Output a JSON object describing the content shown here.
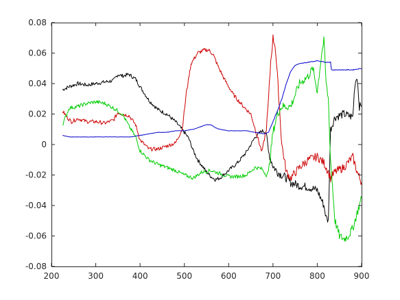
{
  "chart_data": {
    "type": "line",
    "title": "",
    "xlabel": "",
    "ylabel": "",
    "xlim": [
      200,
      900
    ],
    "ylim": [
      -0.08,
      0.08
    ],
    "xticks": [
      "200",
      "300",
      "400",
      "500",
      "600",
      "700",
      "800",
      "900"
    ],
    "yticks": [
      "-0.08",
      "-0.06",
      "-0.04",
      "-0.02",
      "0",
      "0.02",
      "0.04",
      "0.06",
      "0.08"
    ],
    "grid": false,
    "legend": "none",
    "series": [
      {
        "color": "#000000",
        "x": [
          225,
          240,
          260,
          280,
          300,
          320,
          340,
          350,
          360,
          375,
          390,
          400,
          420,
          440,
          460,
          480,
          500,
          510,
          520,
          530,
          540,
          550,
          560,
          570,
          580,
          600,
          620,
          640,
          660,
          675,
          685,
          690,
          700,
          710,
          720,
          730,
          740,
          760,
          780,
          800,
          815,
          820,
          825,
          830,
          840,
          860,
          880,
          885,
          890,
          895,
          900
        ],
        "y": [
          0.036,
          0.038,
          0.04,
          0.039,
          0.04,
          0.041,
          0.042,
          0.046,
          0.045,
          0.046,
          0.043,
          0.038,
          0.029,
          0.023,
          0.02,
          0.015,
          0.008,
          0.004,
          -0.004,
          -0.01,
          -0.014,
          -0.018,
          -0.021,
          -0.023,
          -0.022,
          -0.017,
          -0.012,
          -0.005,
          0.005,
          0.009,
          0.008,
          -0.005,
          -0.014,
          -0.018,
          -0.02,
          -0.022,
          -0.025,
          -0.027,
          -0.028,
          -0.03,
          -0.04,
          -0.048,
          -0.05,
          0.01,
          0.018,
          0.02,
          0.018,
          0.04,
          0.045,
          0.025,
          0.025
        ]
      },
      {
        "color": "#cc0000",
        "x": [
          225,
          235,
          245,
          260,
          280,
          300,
          320,
          340,
          350,
          360,
          375,
          390,
          400,
          420,
          440,
          460,
          480,
          495,
          505,
          515,
          530,
          545,
          555,
          565,
          575,
          590,
          610,
          630,
          650,
          665,
          675,
          685,
          690,
          695,
          700,
          705,
          710,
          720,
          730,
          740,
          760,
          780,
          800,
          815,
          825,
          830,
          840,
          860,
          880,
          890,
          900
        ],
        "y": [
          0.022,
          0.018,
          0.015,
          0.017,
          0.015,
          0.015,
          0.014,
          0.016,
          0.021,
          0.02,
          0.019,
          0.013,
          0.003,
          -0.003,
          -0.003,
          -0.001,
          0.001,
          0.01,
          0.035,
          0.053,
          0.06,
          0.062,
          0.062,
          0.059,
          0.052,
          0.043,
          0.033,
          0.026,
          0.02,
          0.005,
          -0.005,
          0.01,
          0.03,
          0.055,
          0.07,
          0.065,
          0.045,
          0.0,
          -0.018,
          -0.022,
          -0.015,
          -0.01,
          -0.008,
          -0.012,
          -0.018,
          -0.022,
          -0.018,
          -0.015,
          -0.008,
          -0.018,
          -0.025
        ]
      },
      {
        "color": "#00cc00",
        "x": [
          225,
          240,
          260,
          280,
          300,
          320,
          340,
          360,
          375,
          390,
          400,
          420,
          440,
          460,
          480,
          500,
          520,
          540,
          560,
          580,
          600,
          620,
          640,
          660,
          675,
          685,
          690,
          700,
          710,
          720,
          740,
          760,
          780,
          790,
          800,
          810,
          815,
          820,
          825,
          830,
          840,
          850,
          860,
          870,
          880,
          890,
          900
        ],
        "y": [
          0.013,
          0.024,
          0.025,
          0.027,
          0.028,
          0.027,
          0.024,
          0.02,
          0.012,
          0.005,
          -0.004,
          -0.01,
          -0.013,
          -0.015,
          -0.017,
          -0.02,
          -0.022,
          -0.018,
          -0.017,
          -0.019,
          -0.021,
          -0.021,
          -0.02,
          -0.015,
          -0.016,
          -0.02,
          -0.018,
          0.008,
          0.02,
          0.025,
          0.025,
          0.04,
          0.045,
          0.05,
          0.035,
          0.06,
          0.068,
          0.04,
          0.03,
          -0.01,
          -0.05,
          -0.06,
          -0.062,
          -0.06,
          -0.055,
          -0.045,
          -0.035
        ]
      },
      {
        "color": "#0000cc",
        "x": [
          225,
          240,
          260,
          280,
          300,
          320,
          340,
          360,
          380,
          400,
          420,
          440,
          460,
          480,
          500,
          520,
          540,
          550,
          560,
          570,
          580,
          600,
          620,
          640,
          660,
          680,
          690,
          700,
          710,
          720,
          730,
          740,
          750,
          760,
          780,
          800,
          820,
          830,
          832,
          840,
          860,
          880,
          900
        ],
        "y": [
          0.006,
          0.005,
          0.005,
          0.005,
          0.005,
          0.005,
          0.005,
          0.005,
          0.005,
          0.006,
          0.007,
          0.008,
          0.008,
          0.009,
          0.009,
          0.01,
          0.012,
          0.013,
          0.013,
          0.011,
          0.01,
          0.009,
          0.009,
          0.009,
          0.008,
          0.007,
          0.008,
          0.015,
          0.022,
          0.03,
          0.04,
          0.048,
          0.052,
          0.053,
          0.054,
          0.055,
          0.054,
          0.054,
          0.049,
          0.049,
          0.049,
          0.049,
          0.05
        ]
      }
    ]
  }
}
